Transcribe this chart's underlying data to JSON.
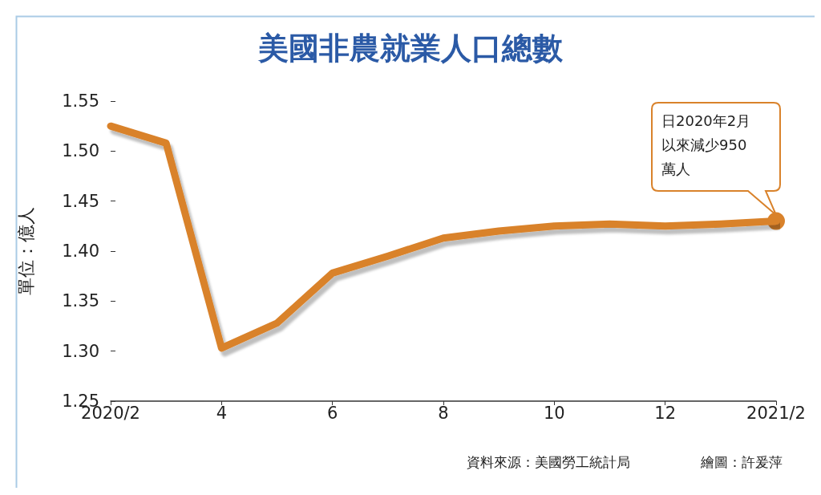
{
  "chart_data": {
    "type": "line",
    "title": "美國非農就業人口總數",
    "ylabel": "單位：億人",
    "categories": [
      "2020/2",
      null,
      "4",
      null,
      "6",
      null,
      "8",
      null,
      "10",
      null,
      "12",
      null,
      "2021/2"
    ],
    "series": [
      {
        "color": "#d9822b",
        "values": [
          1.525,
          1.508,
          1.303,
          1.328,
          1.378,
          1.395,
          1.413,
          1.42,
          1.425,
          1.427,
          1.425,
          1.427,
          1.43
        ]
      }
    ],
    "ylim": [
      1.25,
      1.55
    ],
    "yticks": [
      {
        "value": 1.25,
        "label": "1.25"
      },
      {
        "value": 1.3,
        "label": "1.30"
      },
      {
        "value": 1.35,
        "label": "1.35"
      },
      {
        "value": 1.4,
        "label": "1.40"
      },
      {
        "value": 1.45,
        "label": "1.45"
      },
      {
        "value": 1.5,
        "label": "1.50"
      },
      {
        "value": 1.55,
        "label": "1.55"
      }
    ],
    "grid": false,
    "marker": "none",
    "line_style": "solid",
    "annotations": [
      "日2020年2月以來減少950萬人",
      "資料來源：美國勞工統計局",
      "繪圖：許爰萍"
    ]
  }
}
